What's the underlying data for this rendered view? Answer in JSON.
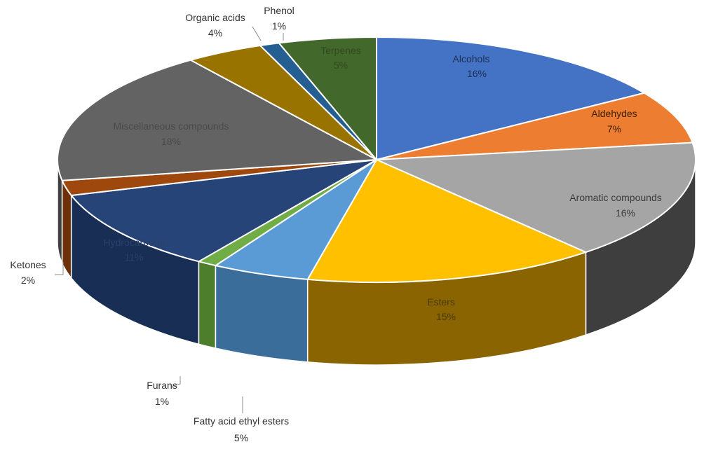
{
  "chart_data": {
    "type": "pie",
    "title": "",
    "slices": [
      {
        "name": "Alcohols",
        "value": 16,
        "label": "16%",
        "color": "#4472C4",
        "side_color": "#2E4F8A"
      },
      {
        "name": "Aldehydes",
        "value": 7,
        "label": "7%",
        "color": "#ED7D31",
        "side_color": "#A85820"
      },
      {
        "name": "Aromatic compounds",
        "value": 16,
        "label": "16%",
        "color": "#A5A5A5",
        "side_color": "#3E3E3E"
      },
      {
        "name": "Esters",
        "value": 15,
        "label": "15%",
        "color": "#FFC000",
        "side_color": "#8A6400"
      },
      {
        "name": "Fatty acid ethyl esters",
        "value": 5,
        "label": "5%",
        "color": "#5B9BD5",
        "side_color": "#3A6D9A"
      },
      {
        "name": "Furans",
        "value": 1,
        "label": "1%",
        "color": "#70AD47",
        "side_color": "#4D7E2C"
      },
      {
        "name": "Hydrocarbons",
        "value": 11,
        "label": "11%",
        "color": "#264478",
        "side_color": "#182E55"
      },
      {
        "name": "Ketones",
        "value": 2,
        "label": "2%",
        "color": "#9E480E",
        "side_color": "#6E3009"
      },
      {
        "name": "Miscellaneous compounds",
        "value": 18,
        "label": "18%",
        "color": "#636363",
        "side_color": "#3F3F3F"
      },
      {
        "name": "Organic acids",
        "value": 4,
        "label": "4%",
        "color": "#997300",
        "side_color": "#6B5000"
      },
      {
        "name": "Phenol",
        "value": 1,
        "label": "1%",
        "color": "#255E91",
        "side_color": "#183F62"
      },
      {
        "name": "Terpenes",
        "value": 5,
        "label": "5%",
        "color": "#43682B",
        "side_color": "#2C4620"
      }
    ],
    "legend": "none",
    "style": "3d-pie"
  },
  "labels": {
    "alcohols": {
      "name": "Alcohols",
      "pct": "16%"
    },
    "aldehydes": {
      "name": "Aldehydes",
      "pct": "7%"
    },
    "aromatic": {
      "name": "Aromatic compounds",
      "pct": "16%"
    },
    "esters": {
      "name": "Esters",
      "pct": "15%"
    },
    "faee": {
      "name": "Fatty acid ethyl esters",
      "pct": "5%"
    },
    "furans": {
      "name": "Furans",
      "pct": "1%"
    },
    "hydrocarbons": {
      "name": "Hydrocarbons",
      "pct": "11%"
    },
    "ketones": {
      "name": "Ketones",
      "pct": "2%"
    },
    "misc": {
      "name": "Miscellaneous compounds",
      "pct": "18%"
    },
    "organic": {
      "name": "Organic acids",
      "pct": "4%"
    },
    "phenol": {
      "name": "Phenol",
      "pct": "1%"
    },
    "terpenes": {
      "name": "Terpenes",
      "pct": "5%"
    }
  }
}
